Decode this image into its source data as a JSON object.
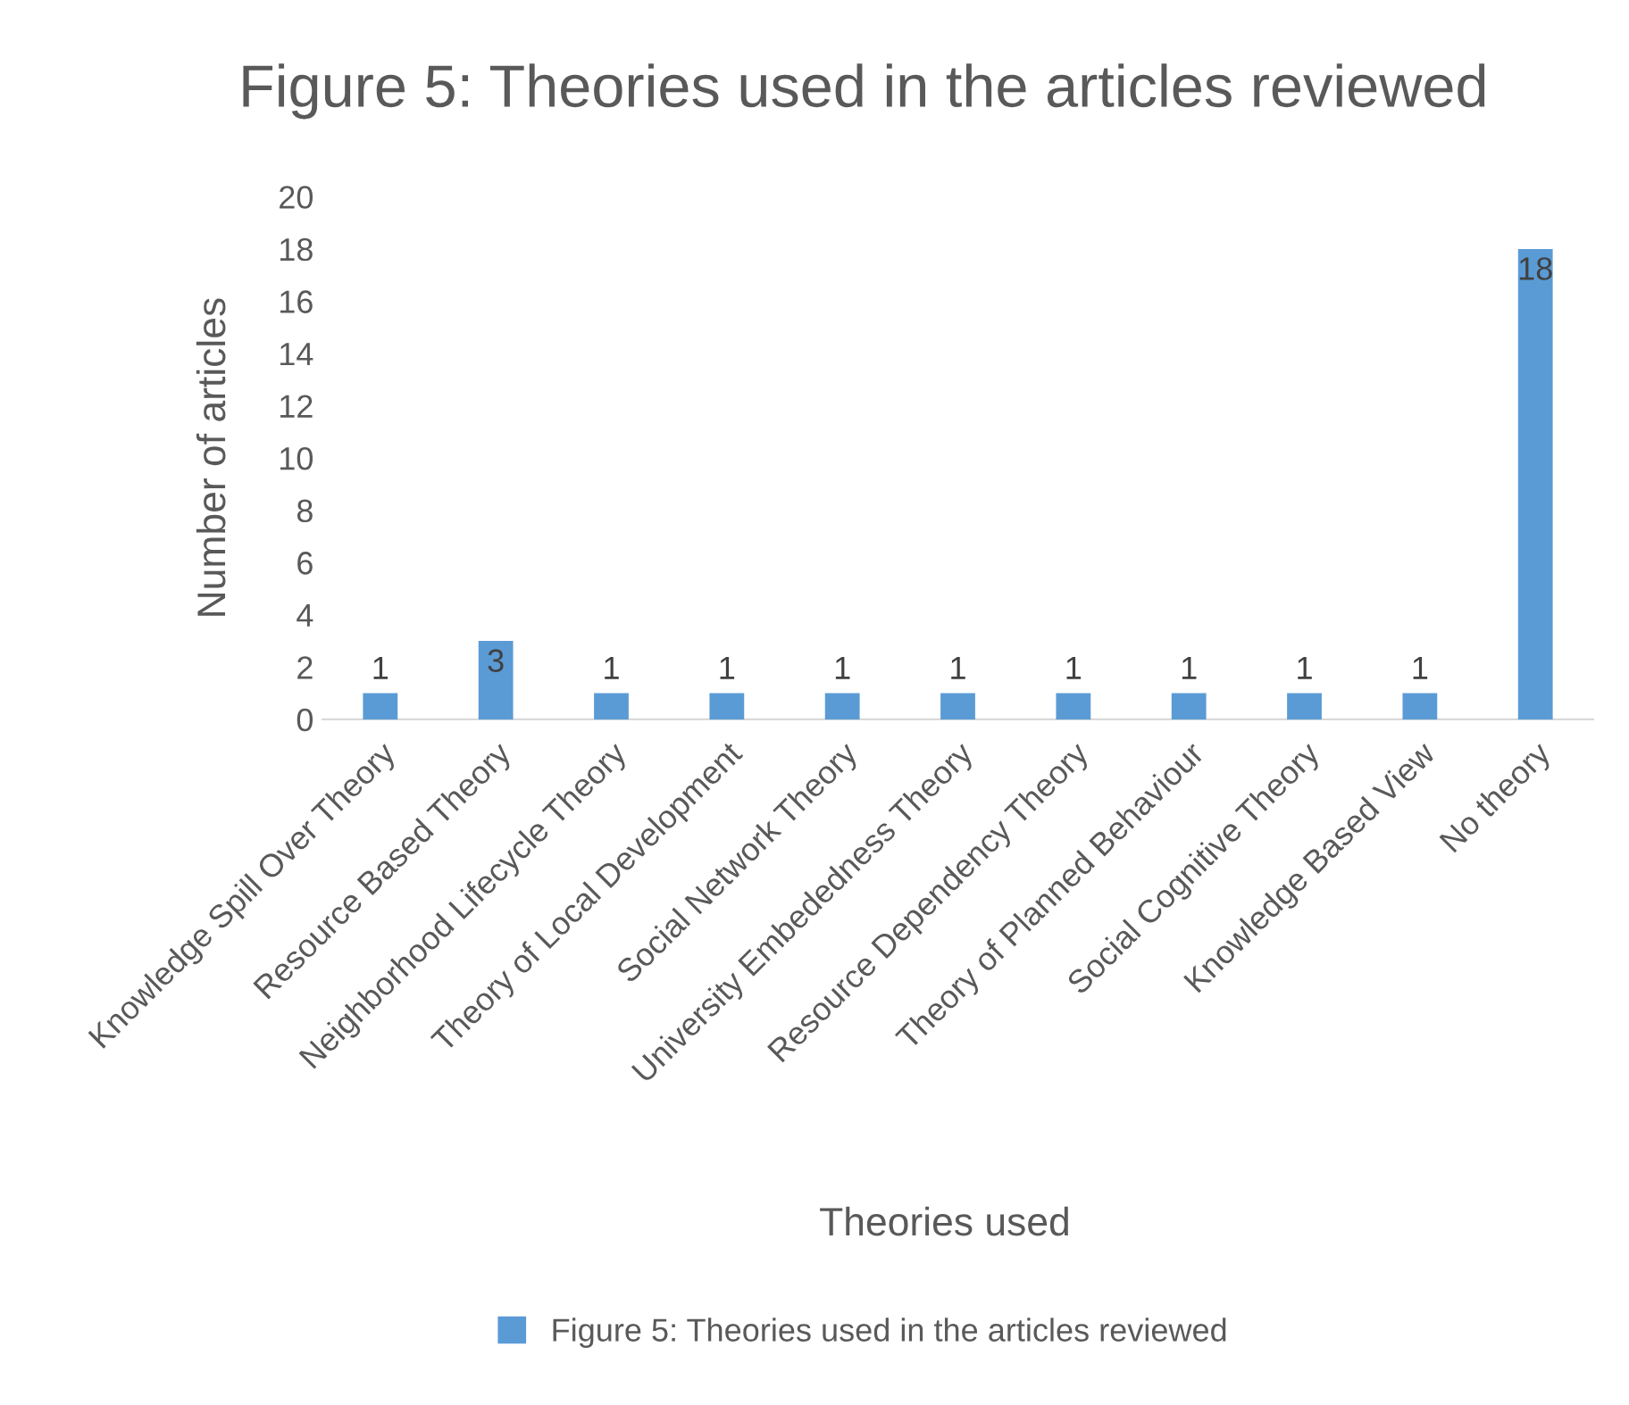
{
  "chart_data": {
    "type": "bar",
    "title": "Figure 5: Theories used in the articles reviewed",
    "xlabel": "Theories used",
    "ylabel": "Number of articles",
    "categories": [
      "Knowledge Spill Over Theory",
      "Resource Based Theory",
      "Neighborhood Lifecycle Theory",
      "Theory of Local Development",
      "Social Network Theory",
      "University Embededness Theory",
      "Resource Dependency Theory",
      "Theory of Planned Behaviour",
      "Social Cognitive Theory",
      "Knowledge Based View",
      "No theory"
    ],
    "series": [
      {
        "name": "Figure 5: Theories used in the articles reviewed",
        "color": "#5b9bd5",
        "values": [
          1,
          3,
          1,
          1,
          1,
          1,
          1,
          1,
          1,
          1,
          18
        ]
      }
    ],
    "ylim": [
      0,
      20
    ],
    "yticks": [
      0,
      2,
      4,
      6,
      8,
      10,
      12,
      14,
      16,
      18,
      20
    ],
    "data_labels": true,
    "legend": "bottom",
    "grid": false
  }
}
